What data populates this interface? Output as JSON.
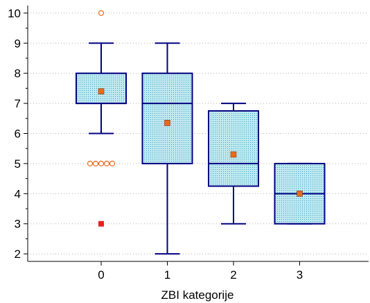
{
  "chart_data": {
    "type": "box",
    "title": "",
    "xlabel": "ZBI kategorije",
    "ylabel": "",
    "categories": [
      "0",
      "1",
      "2",
      "3"
    ],
    "ylim": [
      1.75,
      10.25
    ],
    "yticks": [
      2,
      3,
      4,
      5,
      6,
      7,
      8,
      9,
      10
    ],
    "grid": {
      "horizontal": true,
      "vertical": false,
      "style": "dotted"
    },
    "boxes": [
      {
        "category": "0",
        "whisker_low": 6,
        "q1": 7,
        "median": 7,
        "q3": 8,
        "whisker_high": 9,
        "mean": 7.4,
        "outliers": [
          10,
          5,
          5,
          5,
          5,
          5
        ],
        "far_outliers": [
          3
        ]
      },
      {
        "category": "1",
        "whisker_low": 2,
        "q1": 5,
        "median": 7,
        "q3": 8,
        "whisker_high": 9,
        "mean": 6.35,
        "outliers": [],
        "far_outliers": []
      },
      {
        "category": "2",
        "whisker_low": 3,
        "q1": 4.25,
        "median": 5,
        "q3": 6.75,
        "whisker_high": 7,
        "mean": 5.3,
        "outliers": [],
        "far_outliers": []
      },
      {
        "category": "3",
        "whisker_low": 3,
        "q1": 3,
        "median": 4,
        "q3": 5,
        "whisker_high": 5,
        "mean": 4,
        "outliers": [],
        "far_outliers": []
      }
    ],
    "colors": {
      "box_stroke": "#000080",
      "box_fill": "#bfe8ef",
      "box_dots": "#3aa8c8",
      "mean_marker": "#e86a1e",
      "outlier_marker": "#e86a1e",
      "far_outlier_marker": "#e82020",
      "axis": "#000000",
      "grid": "#b0b0b0"
    }
  }
}
